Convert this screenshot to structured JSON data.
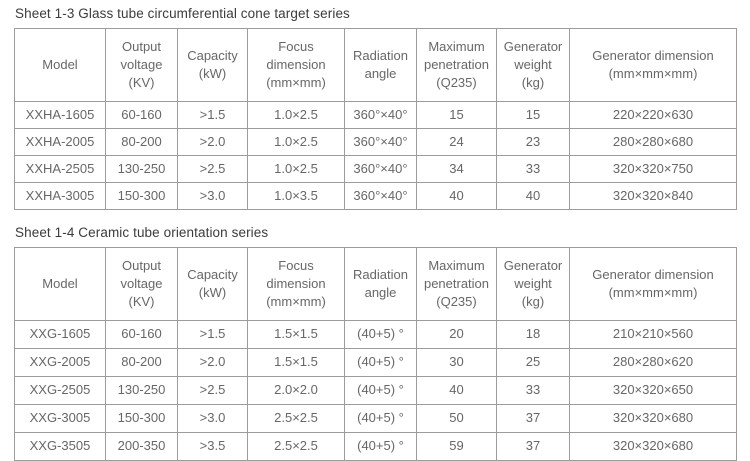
{
  "colors": {
    "border": "#9c9c9c",
    "cell_text": "#676767",
    "title_text": "#3b3b3b",
    "background": "#ffffff"
  },
  "tables": [
    {
      "title": "Sheet 1-3 Glass tube circumferential cone target series",
      "column_headers": [
        "Model",
        "Output\nvoltage\n(KV)",
        "Capacity\n(kW)",
        "Focus\ndimension\n(mm×mm)",
        "Radiation\nangle",
        "Maximum\npenetration\n(Q235)",
        "Generator\nweight\n(kg)",
        "Generator dimension\n(mm×mm×mm)"
      ],
      "rows": [
        [
          "XXHA-1605",
          "60-160",
          ">1.5",
          "1.0×2.5",
          "360°×40°",
          "15",
          "15",
          "220×220×630"
        ],
        [
          "XXHA-2005",
          "80-200",
          ">2.0",
          "1.0×2.5",
          "360°×40°",
          "24",
          "23",
          "280×280×680"
        ],
        [
          "XXHA-2505",
          "130-250",
          ">2.5",
          "1.0×2.5",
          "360°×40°",
          "34",
          "33",
          "320×320×750"
        ],
        [
          "XXHA-3005",
          "150-300",
          ">3.0",
          "1.0×3.5",
          "360°×40°",
          "40",
          "40",
          "320×320×840"
        ]
      ]
    },
    {
      "title": "Sheet 1-4 Ceramic tube orientation series",
      "column_headers": [
        "Model",
        "Output\nvoltage\n(KV)",
        "Capacity\n(kW)",
        "Focus\ndimension\n(mm×mm)",
        "Radiation\nangle",
        "Maximum\npenetration\n(Q235)",
        "Generator\nweight\n(kg)",
        "Generator dimension\n(mm×mm×mm)"
      ],
      "rows": [
        [
          "XXG-1605",
          "60-160",
          ">1.5",
          "1.5×1.5",
          "(40+5) °",
          "20",
          "18",
          "210×210×560"
        ],
        [
          "XXG-2005",
          "80-200",
          ">2.0",
          "1.5×1.5",
          "(40+5) °",
          "30",
          "25",
          "280×280×620"
        ],
        [
          "XXG-2505",
          "130-250",
          ">2.5",
          "2.0×2.0",
          "(40+5) °",
          "40",
          "33",
          "320×320×650"
        ],
        [
          "XXG-3005",
          "150-300",
          ">3.0",
          "2.5×2.5",
          "(40+5) °",
          "50",
          "37",
          "320×320×680"
        ],
        [
          "XXG-3505",
          "200-350",
          ">3.5",
          "2.5×2.5",
          "(40+5) °",
          "59",
          "37",
          "320×320×680"
        ]
      ]
    }
  ]
}
